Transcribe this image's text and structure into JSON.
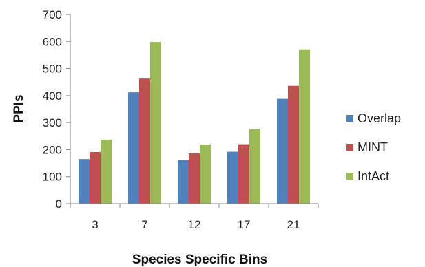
{
  "chart_data": {
    "type": "bar",
    "title": "",
    "xlabel": "Species Specific Bins",
    "ylabel": "PPIs",
    "categories": [
      "3",
      "7",
      "12",
      "17",
      "21"
    ],
    "ylim": [
      0,
      700
    ],
    "yticks": [
      0,
      100,
      200,
      300,
      400,
      500,
      600,
      700
    ],
    "grid": false,
    "legend": "right",
    "series": [
      {
        "name": "Overlap",
        "color": "#4f81bd",
        "values": [
          165,
          412,
          161,
          192,
          388
        ]
      },
      {
        "name": "MINT",
        "color": "#c0504d",
        "values": [
          191,
          463,
          186,
          220,
          436
        ]
      },
      {
        "name": "IntAct",
        "color": "#9bbb59",
        "values": [
          237,
          598,
          219,
          276,
          571
        ]
      }
    ]
  }
}
